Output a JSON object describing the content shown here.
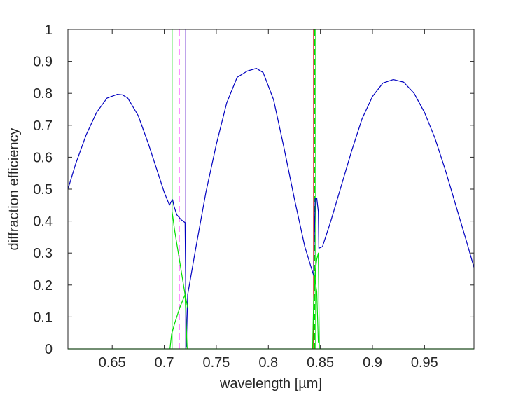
{
  "chart_data": {
    "type": "line",
    "title": "",
    "xlabel": "wavelength [µm]",
    "ylabel": "diffraction efficiency",
    "xlim": [
      0.6075,
      0.9975
    ],
    "ylim": [
      0,
      1
    ],
    "grid": false,
    "legend": "none",
    "x_ticks": [
      "0.65",
      "0.7",
      "0.75",
      "0.8",
      "0.85",
      "0.9",
      "0.95"
    ],
    "x_tick_values": [
      0.65,
      0.7,
      0.75,
      0.8,
      0.85,
      0.9,
      0.95
    ],
    "y_ticks": [
      "0",
      "0.1",
      "0.2",
      "0.3",
      "0.4",
      "0.5",
      "0.6",
      "0.7",
      "0.8",
      "0.9",
      "1"
    ],
    "y_tick_values": [
      0,
      0.1,
      0.2,
      0.3,
      0.4,
      0.5,
      0.6,
      0.7,
      0.8,
      0.9,
      1
    ],
    "colors": {
      "blue": "#0000c0",
      "green": "#00dd00",
      "magenta": "#ff66ff",
      "red": "#cc0000",
      "purple": "#8a5ad8"
    },
    "series": [
      {
        "color": "#0000c0",
        "x": [
          0.6075,
          0.615,
          0.625,
          0.635,
          0.645,
          0.655,
          0.66,
          0.665,
          0.675,
          0.685,
          0.695,
          0.7,
          0.705,
          0.7065,
          0.708,
          0.7095,
          0.712,
          0.716,
          0.72,
          0.7212,
          0.7225,
          0.73,
          0.74,
          0.75,
          0.76,
          0.77,
          0.78,
          0.7885,
          0.795,
          0.805,
          0.815,
          0.825,
          0.835,
          0.8435,
          0.845,
          0.8465,
          0.848,
          0.8485,
          0.852,
          0.86,
          0.87,
          0.88,
          0.89,
          0.9,
          0.91,
          0.92,
          0.93,
          0.94,
          0.95,
          0.96,
          0.97,
          0.98,
          0.99,
          0.9975
        ],
        "y": [
          0.5,
          0.58,
          0.67,
          0.74,
          0.785,
          0.797,
          0.795,
          0.785,
          0.73,
          0.64,
          0.54,
          0.49,
          0.45,
          0.46,
          0.467,
          0.445,
          0.42,
          0.405,
          0.395,
          0.005,
          0.17,
          0.31,
          0.49,
          0.64,
          0.77,
          0.85,
          0.87,
          0.878,
          0.865,
          0.78,
          0.63,
          0.47,
          0.32,
          0.23,
          0.472,
          0.472,
          0.43,
          0.315,
          0.32,
          0.4,
          0.51,
          0.62,
          0.72,
          0.79,
          0.832,
          0.843,
          0.835,
          0.8,
          0.74,
          0.66,
          0.56,
          0.45,
          0.34,
          0.255
        ]
      },
      {
        "color": "#00dd00",
        "x": [
          0.7055,
          0.707,
          0.71,
          0.715,
          0.72,
          0.722
        ],
        "y": [
          0.0,
          0.045,
          0.08,
          0.13,
          0.17,
          0.0
        ]
      },
      {
        "color": "#00dd00",
        "x": [
          0.7075,
          0.71,
          0.715,
          0.72,
          0.7225
        ],
        "y": [
          0.43,
          0.37,
          0.27,
          0.17,
          0.13
        ]
      },
      {
        "color": "#00dd00",
        "x": [
          0.8425,
          0.8435,
          0.845,
          0.8465,
          0.848,
          0.849
        ],
        "y": [
          0.0,
          0.15,
          0.24,
          0.28,
          0.3,
          0.0
        ]
      },
      {
        "color": "#00dd00",
        "x": [
          0.8435,
          0.845,
          0.8465,
          0.848
        ],
        "y": [
          0.24,
          0.21,
          0.18,
          0.02
        ]
      }
    ],
    "vlines": [
      {
        "x": 0.7075,
        "color": "#00dd00",
        "dashed": false
      },
      {
        "x": 0.7145,
        "color": "#ff66ff",
        "dashed": true
      },
      {
        "x": 0.7205,
        "color": "#8a5ad8",
        "dashed": false
      },
      {
        "x": 0.8435,
        "color": "#cc0000",
        "dashed": false
      },
      {
        "x": 0.8445,
        "color": "#00dd00",
        "dashed": true
      },
      {
        "x": 0.8455,
        "color": "#00dd00",
        "dashed": false
      }
    ]
  }
}
